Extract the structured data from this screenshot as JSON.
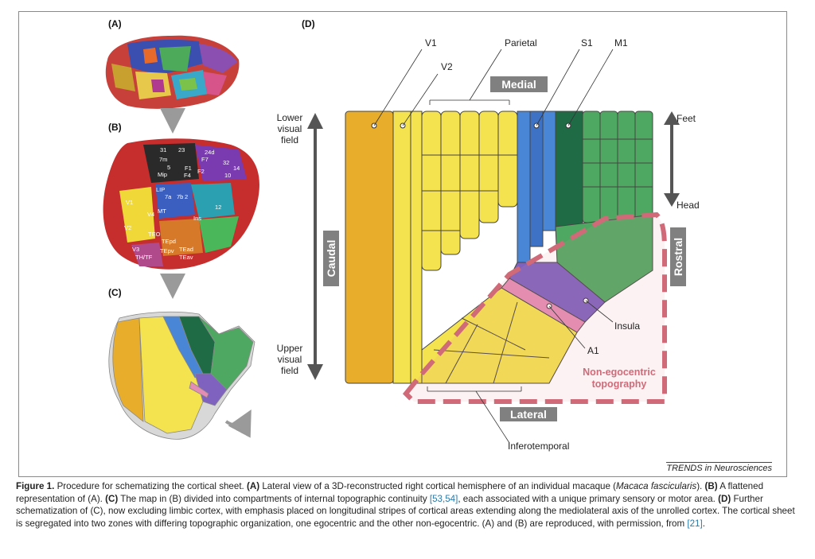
{
  "panels": {
    "a": "(A)",
    "b": "(B)",
    "c": "(C)",
    "d": "(D)"
  },
  "panel_b_areas": [
    "31",
    "23",
    "7m",
    "F2",
    "F1",
    "F4",
    "F7",
    "24d",
    "32",
    "10",
    "14",
    "5",
    "Mip",
    "LIP",
    "7a",
    "7b",
    "2",
    "V1",
    "V2",
    "V3",
    "V4",
    "MT",
    "Ins",
    "TEO",
    "TEpd",
    "TEpv",
    "TEad",
    "TEav",
    "12",
    "TH/TF"
  ],
  "diagram": {
    "top_labels": {
      "v1": "V1",
      "v2": "V2",
      "parietal": "Parietal",
      "s1": "S1",
      "m1": "M1"
    },
    "medial": "Medial",
    "lateral": "Lateral",
    "caudal": "Caudal",
    "rostral": "Rostral",
    "lower_visual_field": [
      "Lower",
      "visual",
      "field"
    ],
    "upper_visual_field": [
      "Upper",
      "visual",
      "field"
    ],
    "feet": "Feet",
    "head": "Head",
    "insula": "Insula",
    "a1": "A1",
    "inferotemporal": "Inferotemporal",
    "non_egocentric": [
      "Non-egocentric",
      "topography"
    ]
  },
  "colors": {
    "v1": "#e8ad2a",
    "yellow": "#f4e24e",
    "s1": "#4a86d6",
    "m1_dark": "#1f6b46",
    "m1": "#4fa861",
    "insula": "#7f61bf",
    "a1": "#e48cb4",
    "zone": "#d06a78",
    "label_box": "#808080"
  },
  "credit": "TRENDS in Neurosciences",
  "caption": {
    "lead": "Figure 1.",
    "t1": "Procedure for schematizing the cortical sheet.",
    "a": "(A)",
    "t2": "Lateral view of a 3D-reconstructed right cortical hemisphere of an individual macaque (",
    "species": "Macaca fascicularis",
    "t3": ").",
    "b": "(B)",
    "t4": "A flattened representation of (A).",
    "c": "(C)",
    "t5": "The map in (B) divided into compartments of internal topographic continuity",
    "ref1": "[53,54]",
    "t6": ", each associated with a unique primary sensory or motor area.",
    "d": "(D)",
    "t7": "Further schematization of (C), now excluding limbic cortex, with emphasis placed on longitudinal stripes of cortical areas extending along the mediolateral axis of the unrolled cortex. The cortical sheet is segregated into two zones with differing topographic organization, one egocentric and the other non-egocentric. (A) and (B) are reproduced, with permission, from",
    "ref2": "[21]",
    "t8": "."
  }
}
